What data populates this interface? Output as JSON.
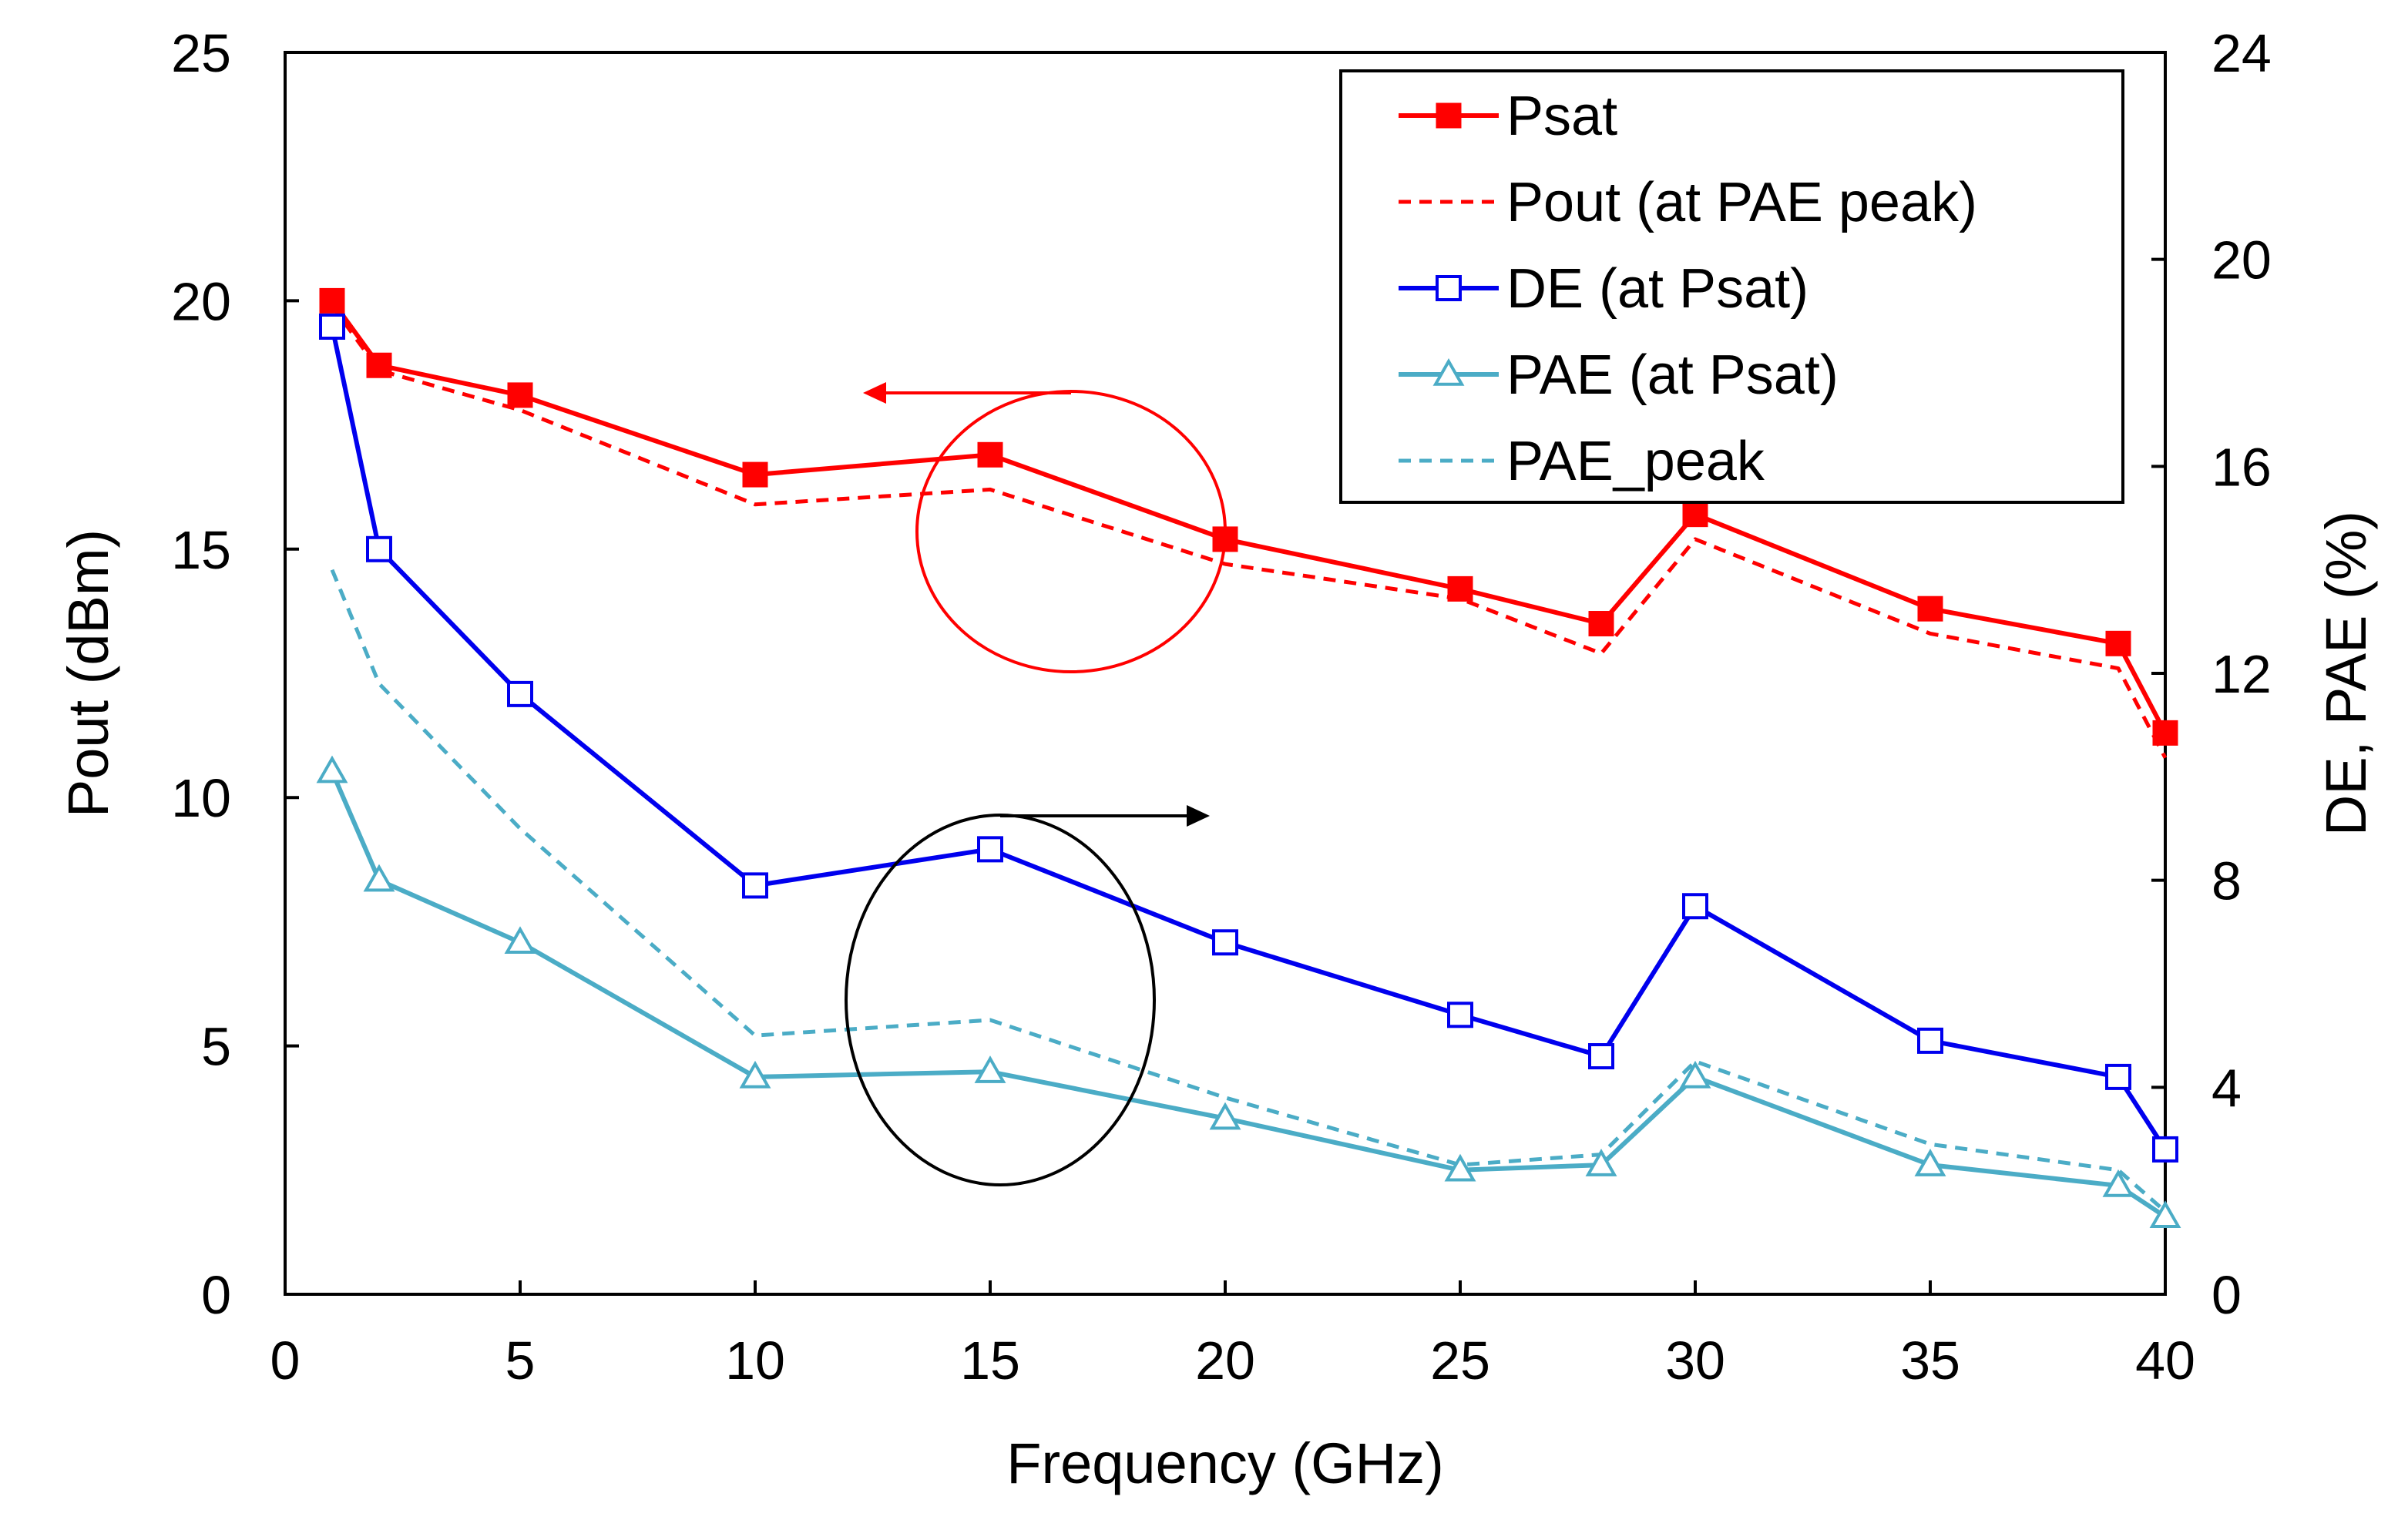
{
  "chart_data": {
    "type": "line",
    "title": "",
    "xlabel": "Frequency (GHz)",
    "ylabel": "Pout (dBm)",
    "y2label": "DE, PAE (%)",
    "xlim": [
      0,
      40
    ],
    "ylim": [
      0,
      25
    ],
    "y2lim": [
      0,
      24
    ],
    "x_ticks": [
      "0",
      "5",
      "10",
      "15",
      "20",
      "25",
      "30",
      "35",
      "40"
    ],
    "y_ticks": [
      "0",
      "5",
      "10",
      "15",
      "20",
      "25"
    ],
    "y2_ticks": [
      "0",
      "4",
      "8",
      "12",
      "16",
      "20",
      "24"
    ],
    "grid": false,
    "legend_position": "top-right",
    "x": [
      1,
      2,
      5,
      10,
      15,
      20,
      25,
      28,
      30,
      35,
      39,
      40
    ],
    "series": [
      {
        "name": "Psat",
        "axis": "left",
        "color": "#ff0000",
        "style": "solid",
        "marker": "filled-square",
        "values": [
          20.0,
          18.7,
          18.1,
          16.5,
          16.9,
          15.2,
          14.2,
          13.5,
          15.7,
          13.8,
          13.1,
          11.3
        ]
      },
      {
        "name": "Pout (at PAE peak)",
        "axis": "left",
        "color": "#ff0000",
        "style": "dashed",
        "marker": "none",
        "values": [
          19.9,
          18.6,
          17.8,
          15.9,
          16.2,
          14.7,
          14.0,
          12.9,
          15.2,
          13.3,
          12.6,
          10.8
        ]
      },
      {
        "name": "DE (at Psat)",
        "axis": "right",
        "color": "#0000ee",
        "style": "solid",
        "marker": "open-square",
        "values": [
          18.7,
          14.4,
          11.6,
          7.9,
          8.6,
          6.8,
          5.4,
          4.6,
          7.5,
          4.9,
          4.2,
          2.8
        ]
      },
      {
        "name": "PAE (at Psat)",
        "axis": "right",
        "color": "#4bacc6",
        "style": "solid",
        "marker": "open-triangle",
        "values": [
          10.1,
          8.0,
          6.8,
          4.2,
          4.3,
          3.4,
          2.4,
          2.5,
          4.2,
          2.5,
          2.1,
          1.5
        ]
      },
      {
        "name": "PAE_peak",
        "axis": "right",
        "color": "#4bacc6",
        "style": "dashed",
        "marker": "none",
        "values": [
          14.0,
          11.8,
          9.0,
          5.0,
          5.3,
          3.8,
          2.5,
          2.7,
          4.5,
          2.9,
          2.4,
          1.6
        ]
      }
    ],
    "annotations": [
      {
        "type": "circle-arrow",
        "target_axis": "left",
        "color": "#ff0000",
        "description": "red circle around Pout curves with arrow pointing left"
      },
      {
        "type": "circle-arrow",
        "target_axis": "right",
        "color": "#000000",
        "description": "black circle around DE/PAE curves with arrow pointing right"
      }
    ]
  }
}
